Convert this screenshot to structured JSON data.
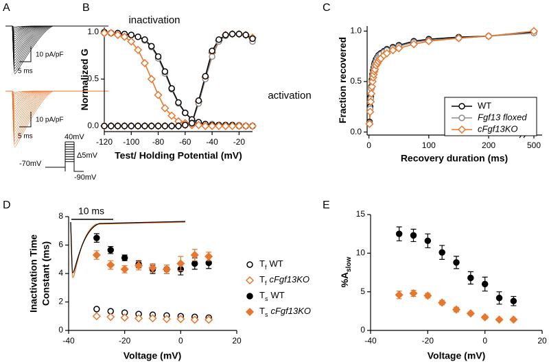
{
  "chart_data": [
    {
      "panel": "A",
      "type": "traces",
      "groups": [
        {
          "color": "#000000",
          "scale_labels": [
            "10 pA/pF",
            "5 ms"
          ]
        },
        {
          "color": "#e8772e",
          "scale_labels": [
            "10 pA/pF",
            "5 ms"
          ]
        }
      ],
      "protocol_labels": [
        "40mV",
        "Δ5mV",
        "-70mV",
        "-90mV"
      ]
    },
    {
      "panel": "B",
      "type": "line",
      "ylabel": "Normalized G",
      "xlabel": "Test/ Holding Potential (mV)",
      "annotations": [
        "inactivation",
        "activation"
      ],
      "xlim": [
        -120,
        -10
      ],
      "xticks": [
        -120,
        -100,
        -80,
        -60,
        -40,
        -20
      ],
      "ylim": [
        -0.06,
        1.05
      ],
      "yticks": [
        {
          "value": 0,
          "label": "0.0"
        },
        {
          "value": 0.5,
          "label": "0.5"
        },
        {
          "value": 1,
          "label": "1.0"
        }
      ],
      "x": [
        -120,
        -115,
        -110,
        -105,
        -100,
        -95,
        -90,
        -85,
        -80,
        -75,
        -70,
        -65,
        -60,
        -55,
        -50,
        -45,
        -40,
        -35,
        -30,
        -25,
        -20,
        -15,
        -10
      ],
      "series": [
        {
          "color": "#8c8c8c",
          "marker": "circle",
          "filled": false,
          "values": [
            0.99,
            0.99,
            0.98,
            0.98,
            0.97,
            0.95,
            0.91,
            0.84,
            0.72,
            0.56,
            0.39,
            0.24,
            0.14,
            0.07,
            0.04,
            0.02,
            0.02,
            0.01,
            0.01,
            0.01,
            0.01,
            0,
            0
          ]
        },
        {
          "color": "#000000",
          "marker": "circle",
          "filled": false,
          "values": [
            1,
            0.99,
            0.99,
            0.98,
            0.97,
            0.95,
            0.92,
            0.85,
            0.74,
            0.58,
            0.4,
            0.25,
            0.14,
            0.07,
            0.04,
            0.02,
            0.01,
            0.01,
            0.01,
            0.01,
            0,
            0,
            0
          ]
        },
        {
          "color": "#e8772e",
          "marker": "diamond",
          "filled": false,
          "values": [
            0.99,
            0.99,
            0.97,
            0.95,
            0.9,
            0.81,
            0.67,
            0.5,
            0.33,
            0.19,
            0.11,
            0.05,
            0.03,
            0.01,
            0.01,
            0,
            0,
            0,
            0,
            0,
            0,
            0,
            0
          ]
        },
        {
          "color": "#e8772e",
          "marker": "diamond",
          "filled": false,
          "values": [
            0,
            0,
            0,
            0,
            0,
            0,
            0,
            0,
            0,
            0,
            0,
            0,
            0.01,
            0.03,
            0.26,
            0.52,
            0.78,
            0.91,
            0.97,
            0.98,
            0.98,
            0.97,
            0.94
          ]
        },
        {
          "color": "#8c8c8c",
          "marker": "circle",
          "filled": false,
          "values": [
            0,
            0,
            0,
            0,
            0,
            0,
            0,
            0,
            0,
            0,
            0,
            0,
            0.01,
            0.03,
            0.24,
            0.5,
            0.74,
            0.9,
            0.96,
            0.98,
            0.98,
            0.97,
            0.9
          ]
        },
        {
          "color": "#000000",
          "marker": "circle",
          "filled": false,
          "values": [
            0,
            0,
            0,
            0,
            0,
            0,
            0,
            0,
            0,
            0,
            0,
            0,
            0.01,
            0.03,
            0.27,
            0.53,
            0.8,
            0.92,
            0.97,
            0.98,
            0.98,
            0.97,
            0.93
          ]
        }
      ]
    },
    {
      "panel": "C",
      "type": "line",
      "ylabel": "Fraction recovered",
      "xlabel": "Recovery duration (ms)",
      "xlim": [
        -3,
        510
      ],
      "axis_break": [
        255,
        490
      ],
      "xticks": [
        0,
        100,
        200,
        500
      ],
      "ylim": [
        -0.03,
        1.05
      ],
      "yticks": [
        {
          "value": 0,
          "label": "0.0"
        },
        {
          "value": 0.5,
          "label": "0.5"
        },
        {
          "value": 1,
          "label": "1.0"
        }
      ],
      "x": [
        1,
        2,
        3,
        4,
        5,
        6,
        7,
        8,
        9,
        10,
        12,
        14,
        16,
        18,
        20,
        25,
        30,
        40,
        50,
        75,
        100,
        150,
        200,
        500
      ],
      "series": [
        {
          "name": "WT",
          "italic": false,
          "color": "#000000",
          "marker": "circle",
          "filled": false,
          "values": [
            0.1,
            0.25,
            0.35,
            0.45,
            0.52,
            0.57,
            0.61,
            0.64,
            0.67,
            0.69,
            0.72,
            0.74,
            0.76,
            0.77,
            0.78,
            0.8,
            0.82,
            0.84,
            0.86,
            0.9,
            0.92,
            0.94,
            0.95,
            0.99
          ]
        },
        {
          "name": "Fgf13 floxed",
          "italic": true,
          "color": "#8c8c8c",
          "marker": "circle",
          "filled": false,
          "values": [
            0.09,
            0.23,
            0.33,
            0.43,
            0.5,
            0.55,
            0.59,
            0.62,
            0.65,
            0.67,
            0.7,
            0.73,
            0.75,
            0.76,
            0.77,
            0.79,
            0.81,
            0.83,
            0.85,
            0.89,
            0.91,
            0.93,
            0.95,
            0.98
          ]
        },
        {
          "name": "cFgf13KO",
          "italic": true,
          "color": "#e8772e",
          "marker": "diamond",
          "filled": false,
          "values": [
            0.08,
            0.2,
            0.3,
            0.38,
            0.45,
            0.5,
            0.54,
            0.57,
            0.6,
            0.62,
            0.66,
            0.68,
            0.7,
            0.72,
            0.73,
            0.76,
            0.78,
            0.81,
            0.83,
            0.87,
            0.9,
            0.93,
            0.95,
            1
          ]
        }
      ]
    },
    {
      "panel": "D",
      "type": "scatter",
      "ylabel": [
        "Inactivation Time",
        "Constant (ms)"
      ],
      "xlabel": "Voltage (mV)",
      "inset_scale_label": "10 ms",
      "xlim": [
        -40,
        20
      ],
      "xticks": [
        -40,
        -20,
        0,
        20
      ],
      "ylim": [
        0,
        8
      ],
      "yticks": [
        0,
        2,
        4,
        6,
        8
      ],
      "x": [
        -30,
        -25,
        -20,
        -15,
        -10,
        -5,
        0,
        5,
        10
      ],
      "series": [
        {
          "symbol": "T",
          "subscript": "f",
          "name": "WT",
          "italic": false,
          "color": "#000000",
          "marker": "circle",
          "filled": false,
          "values": [
            1.5,
            1.35,
            1.25,
            1.15,
            1.1,
            1.05,
            1,
            0.95,
            0.9
          ]
        },
        {
          "symbol": "T",
          "subscript": "f",
          "name": "cFgf13KO",
          "italic": true,
          "color": "#e8772e",
          "marker": "diamond",
          "filled": false,
          "values": [
            1,
            0.95,
            0.9,
            0.85,
            0.85,
            0.8,
            0.8,
            0.75,
            0.75
          ]
        },
        {
          "symbol": "T",
          "subscript": "s",
          "name": "WT",
          "italic": false,
          "color": "#000000",
          "marker": "circle",
          "filled": true,
          "values": [
            6.5,
            5.65,
            5.1,
            4.65,
            4.3,
            4.3,
            4.3,
            4.7,
            4.75
          ],
          "errors": [
            0.3,
            0.25,
            0.2,
            0.25,
            0.3,
            0.3,
            0.4,
            0.4,
            0.4
          ]
        },
        {
          "symbol": "T",
          "subscript": "s",
          "name": "cFgf13KO",
          "italic": true,
          "color": "#e8772e",
          "marker": "diamond",
          "filled": true,
          "values": [
            5.3,
            4.6,
            4.3,
            4.55,
            4.4,
            4.3,
            4.7,
            5.3,
            5.2
          ],
          "errors": [
            0.3,
            0.3,
            0.25,
            0.3,
            0.3,
            0.3,
            0.5,
            0.4,
            0.3
          ]
        }
      ]
    },
    {
      "panel": "E",
      "type": "scatter",
      "ylabel": "%A",
      "ylabel_subscript": "slow",
      "xlabel": "Voltage (mV)",
      "xlim": [
        -40,
        20
      ],
      "xticks": [
        -40,
        -20,
        0,
        20
      ],
      "ylim": [
        0,
        15
      ],
      "yticks": [
        0,
        5,
        10,
        15
      ],
      "x": [
        -30,
        -25,
        -20,
        -15,
        -10,
        -5,
        0,
        5,
        10
      ],
      "series": [
        {
          "color": "#000000",
          "marker": "circle",
          "filled": true,
          "values": [
            12.5,
            12.3,
            11.6,
            10.1,
            8.8,
            6.8,
            6,
            4.2,
            3.8
          ],
          "errors": [
            0.9,
            0.8,
            0.9,
            0.9,
            0.8,
            0.8,
            0.9,
            0.8,
            0.6
          ]
        },
        {
          "color": "#e8772e",
          "marker": "diamond",
          "filled": true,
          "values": [
            4.6,
            4.8,
            4.5,
            3.6,
            2.7,
            2.2,
            1.7,
            1.4,
            1.4
          ],
          "errors": [
            0.5,
            0.4,
            0.3,
            0.3,
            0.3,
            0.2,
            0.2,
            0.1,
            0.1
          ]
        }
      ]
    }
  ]
}
